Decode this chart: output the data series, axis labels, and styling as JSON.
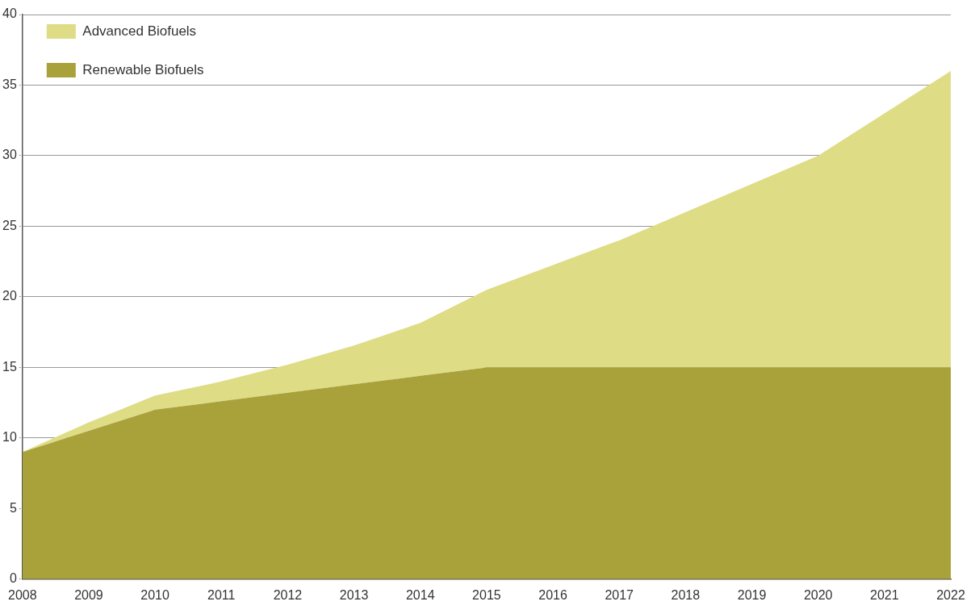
{
  "chart_data": {
    "type": "area",
    "stacked": true,
    "categories": [
      "2008",
      "2009",
      "2010",
      "2011",
      "2012",
      "2013",
      "2014",
      "2015",
      "2016",
      "2017",
      "2018",
      "2019",
      "2020",
      "2021",
      "2022"
    ],
    "series": [
      {
        "name": "Renewable Biofuels",
        "color": "#a9a13a",
        "values": [
          9,
          10.5,
          12,
          12.6,
          13.2,
          13.8,
          14.4,
          15,
          15,
          15,
          15,
          15,
          15,
          15,
          15
        ]
      },
      {
        "name": "Advanced Biofuels",
        "color": "#dedc85",
        "values": [
          0,
          0.6,
          1,
          1.4,
          2,
          2.75,
          3.75,
          5.5,
          7.25,
          9,
          11,
          13,
          15,
          18,
          21
        ]
      }
    ],
    "ylim": [
      0,
      40
    ],
    "yticks": [
      0,
      5,
      10,
      15,
      20,
      25,
      30,
      35,
      40
    ],
    "grid": "y",
    "legend": "top left"
  }
}
